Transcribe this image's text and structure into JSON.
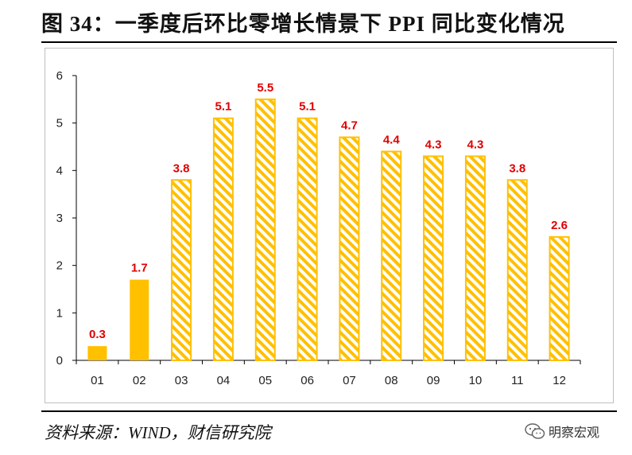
{
  "header": {
    "title": "图 34：一季度后环比零增长情景下 PPI 同比变化情况"
  },
  "footer": {
    "source": "资料来源：WIND，财信研究院"
  },
  "watermark": {
    "text": "明察宏观",
    "icon": "wechat-icon"
  },
  "colors": {
    "bar": "#FFC000",
    "label": "#E00000",
    "axis": "#000000",
    "text": "#222222"
  },
  "chart_data": {
    "type": "bar",
    "categories": [
      "01",
      "02",
      "03",
      "04",
      "05",
      "06",
      "07",
      "08",
      "09",
      "10",
      "11",
      "12"
    ],
    "values": [
      0.3,
      1.7,
      3.8,
      5.1,
      5.5,
      5.1,
      4.7,
      4.4,
      4.3,
      4.3,
      3.8,
      2.6
    ],
    "data_labels": [
      "0.3",
      "1.7",
      "3.8",
      "5.1",
      "5.5",
      "5.1",
      "4.7",
      "4.4",
      "4.3",
      "4.3",
      "3.8",
      "2.6"
    ],
    "fill_pattern": [
      "solid",
      "solid",
      "hatched",
      "hatched",
      "hatched",
      "hatched",
      "hatched",
      "hatched",
      "hatched",
      "hatched",
      "hatched",
      "hatched"
    ],
    "ylim": [
      0,
      6
    ],
    "yticks": [
      "0",
      "1",
      "2",
      "3",
      "4",
      "5",
      "6"
    ],
    "grid": false,
    "legend": "none"
  }
}
